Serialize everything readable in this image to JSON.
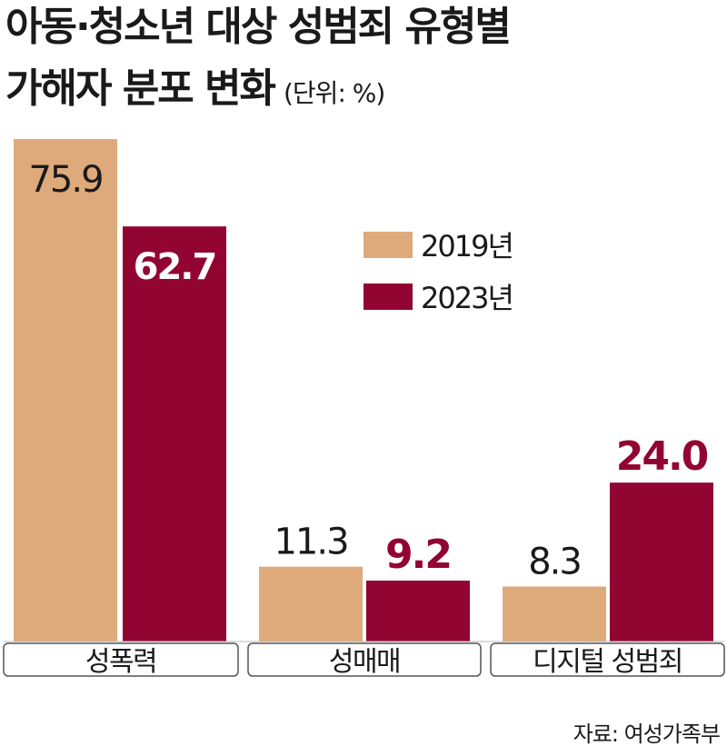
{
  "title": {
    "line1": "아동·청소년 대상 성범죄 유형별",
    "line2": "가해자 분포 변화",
    "unit": "(단위: %)"
  },
  "source": "자료: 여성가족부",
  "colors": {
    "series_2019": "#DEAA7B",
    "series_2023": "#920532",
    "label_2019": "#1a1a1a",
    "label_2023_inside": "#ffffff",
    "label_2023_outside": "#920532"
  },
  "chart_data": {
    "type": "bar",
    "categories": [
      "성폭력",
      "성매매",
      "디지털 성범죄"
    ],
    "series": [
      {
        "name": "2019년",
        "values": [
          75.9,
          11.3,
          8.3
        ]
      },
      {
        "name": "2023년",
        "values": [
          62.7,
          9.2,
          24.0
        ]
      }
    ],
    "value_labels": [
      [
        "75.9",
        "11.3",
        "8.3"
      ],
      [
        "62.7",
        "9.2",
        "24.0"
      ]
    ],
    "title": "아동·청소년 대상 성범죄 유형별 가해자 분포 변화",
    "unit": "%",
    "ylim": [
      0,
      75.9
    ],
    "grid": false,
    "legend_position": "top-right"
  }
}
